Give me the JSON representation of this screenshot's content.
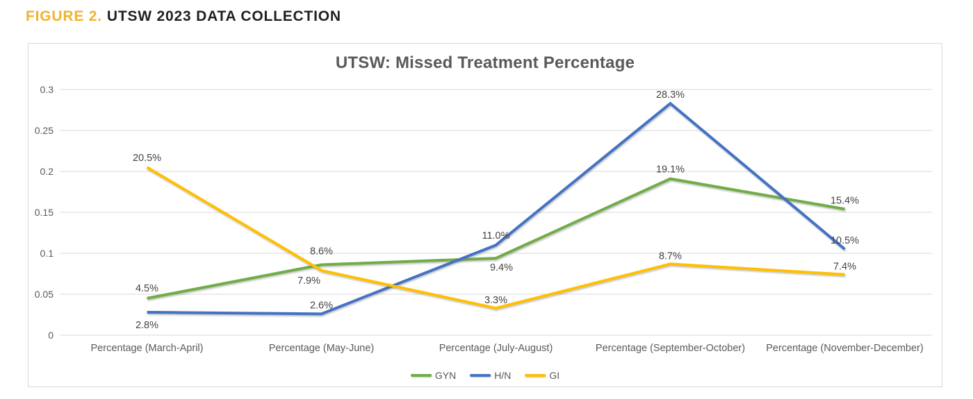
{
  "figure_header": {
    "prefix": "FIGURE 2.",
    "title": "UTSW 2023 DATA COLLECTION",
    "prefix_color": "#F2B32D"
  },
  "chart_data": {
    "type": "line",
    "title": "UTSW: Missed Treatment Percentage",
    "categories": [
      "Percentage (March-April)",
      "Percentage (May-June)",
      "Percentage (July-August)",
      "Percentage (September-October)",
      "Percentage (November-December)"
    ],
    "series": [
      {
        "name": "GYN",
        "color": "#70AD47",
        "values": [
          0.045,
          0.086,
          0.094,
          0.191,
          0.154
        ],
        "point_labels": [
          "4.5%",
          "8.6%",
          "9.4%",
          "19.1%",
          "15.4%"
        ],
        "label_offsets": [
          [
            0,
            -15
          ],
          [
            0,
            -20
          ],
          [
            8,
            13
          ],
          [
            0,
            -14
          ],
          [
            0,
            -13
          ]
        ]
      },
      {
        "name": "H/N",
        "color": "#4472C4",
        "values": [
          0.028,
          0.026,
          0.11,
          0.283,
          0.105
        ],
        "point_labels": [
          "2.8%",
          "2.6%",
          "11.0%",
          "28.3%",
          "10.5%"
        ],
        "label_offsets": [
          [
            0,
            18
          ],
          [
            0,
            -13
          ],
          [
            0,
            -14
          ],
          [
            0,
            -13
          ],
          [
            0,
            -13
          ]
        ]
      },
      {
        "name": "GI",
        "color": "#FFC000",
        "values": [
          0.205,
          0.079,
          0.033,
          0.087,
          0.074
        ],
        "point_labels": [
          "20.5%",
          "7.9%",
          "3.3%",
          "8.7%",
          "7.4%"
        ],
        "label_offsets": [
          [
            0,
            -14
          ],
          [
            -18,
            14
          ],
          [
            0,
            -12
          ],
          [
            0,
            -12
          ],
          [
            0,
            -12
          ]
        ]
      }
    ],
    "y_ticks": [
      {
        "value": 0,
        "label": "0"
      },
      {
        "value": 0.05,
        "label": "0.05"
      },
      {
        "value": 0.1,
        "label": "0.1"
      },
      {
        "value": 0.15,
        "label": "0.15"
      },
      {
        "value": 0.2,
        "label": "0.2"
      },
      {
        "value": 0.25,
        "label": "0.25"
      },
      {
        "value": 0.3,
        "label": "0.3"
      }
    ],
    "ylim": [
      0,
      0.3
    ],
    "grid": true,
    "legend_position": "bottom"
  }
}
